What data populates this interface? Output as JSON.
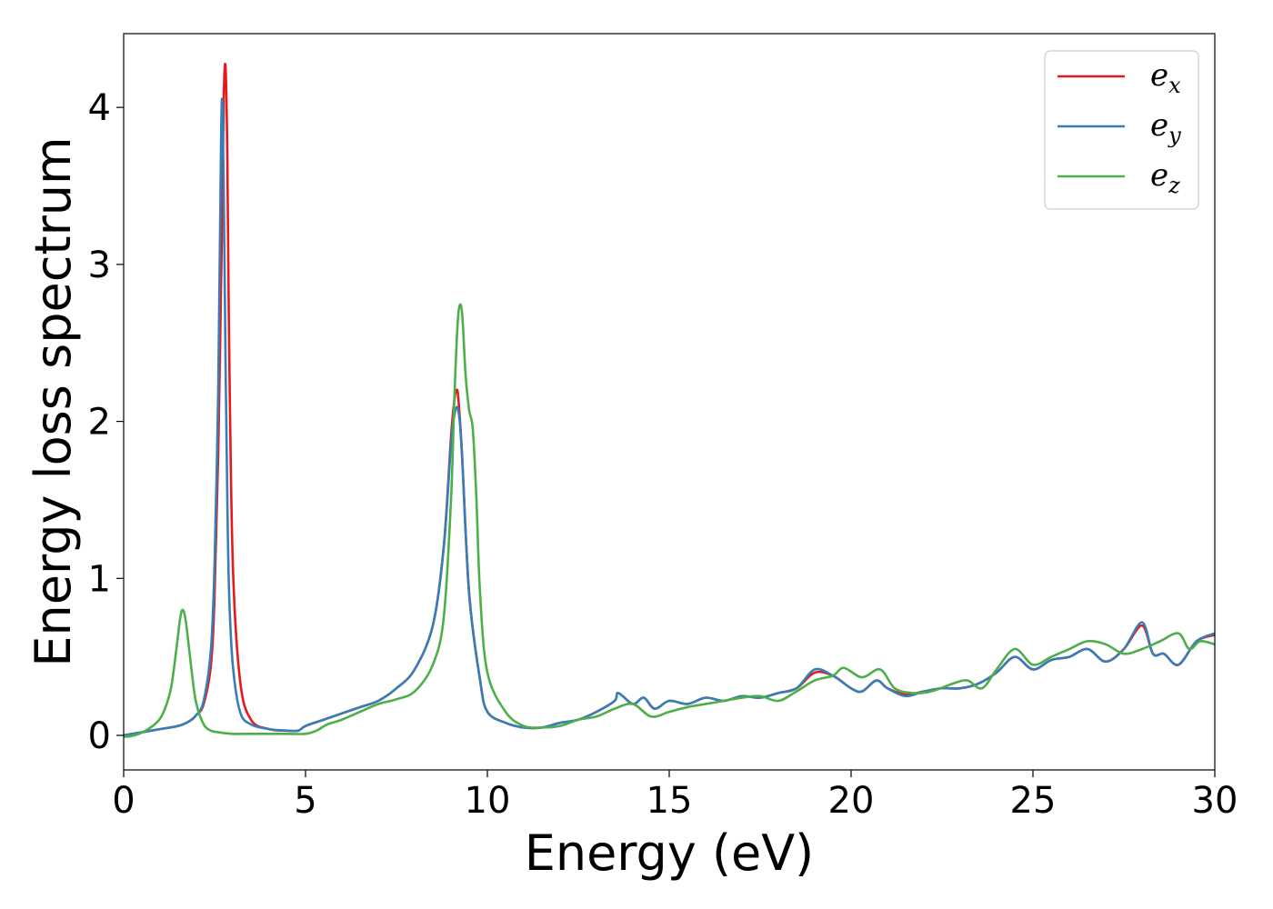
{
  "chart_data": {
    "type": "line",
    "title": "",
    "xlabel": "Energy (eV)",
    "ylabel": "Energy loss spectrum",
    "xlim": [
      0,
      30
    ],
    "ylim": [
      -0.22,
      4.47
    ],
    "xticks": [
      0,
      5,
      10,
      15,
      20,
      25,
      30
    ],
    "yticks": [
      0,
      1,
      2,
      3,
      4
    ],
    "xtick_labels": [
      "0",
      "5",
      "10",
      "15",
      "20",
      "25",
      "30"
    ],
    "ytick_labels": [
      "0",
      "1",
      "2",
      "3",
      "4"
    ],
    "grid": false,
    "legend_position": "top-right",
    "series": [
      {
        "name": "e_x",
        "legend_base": "e",
        "legend_sub": "x",
        "color": "#e41a1c",
        "x": [
          0,
          0.5,
          1.0,
          1.5,
          1.8,
          2.0,
          2.2,
          2.4,
          2.5,
          2.6,
          2.7,
          2.75,
          2.8,
          2.85,
          2.9,
          3.0,
          3.2,
          3.5,
          4.0,
          4.5,
          4.8,
          5.0,
          5.5,
          6.0,
          6.5,
          7.0,
          7.5,
          8.0,
          8.5,
          8.8,
          9.0,
          9.1,
          9.15,
          9.2,
          9.3,
          9.5,
          9.8,
          10.0,
          10.5,
          11.0,
          11.5,
          12.0,
          12.5,
          13.0,
          13.5,
          13.6,
          14.0,
          14.3,
          14.6,
          15.0,
          15.5,
          16.0,
          16.5,
          17.0,
          17.5,
          18.0,
          18.5,
          19.0,
          19.5,
          20.0,
          20.3,
          20.7,
          21.0,
          21.5,
          22.0,
          22.5,
          23.0,
          23.5,
          24.0,
          24.5,
          25.0,
          25.5,
          26.0,
          26.5,
          27.0,
          27.5,
          28.0,
          28.3,
          28.6,
          29.0,
          29.5,
          30.0
        ],
        "values": [
          0.0,
          0.02,
          0.04,
          0.06,
          0.09,
          0.13,
          0.2,
          0.45,
          0.9,
          1.8,
          3.2,
          4.05,
          4.26,
          3.7,
          2.5,
          1.1,
          0.35,
          0.1,
          0.04,
          0.03,
          0.03,
          0.06,
          0.1,
          0.14,
          0.18,
          0.22,
          0.3,
          0.42,
          0.7,
          1.2,
          1.9,
          2.15,
          2.2,
          2.15,
          1.8,
          0.9,
          0.35,
          0.15,
          0.08,
          0.05,
          0.05,
          0.08,
          0.1,
          0.15,
          0.22,
          0.27,
          0.2,
          0.24,
          0.17,
          0.22,
          0.2,
          0.24,
          0.22,
          0.25,
          0.24,
          0.27,
          0.3,
          0.4,
          0.38,
          0.3,
          0.28,
          0.35,
          0.3,
          0.26,
          0.28,
          0.3,
          0.3,
          0.33,
          0.4,
          0.5,
          0.42,
          0.48,
          0.5,
          0.55,
          0.47,
          0.55,
          0.7,
          0.52,
          0.52,
          0.45,
          0.6,
          0.64
        ]
      },
      {
        "name": "e_y",
        "legend_base": "e",
        "legend_sub": "y",
        "color": "#377eb8",
        "x": [
          0,
          0.5,
          1.0,
          1.5,
          1.8,
          2.0,
          2.2,
          2.4,
          2.5,
          2.6,
          2.65,
          2.7,
          2.75,
          2.8,
          2.85,
          2.9,
          3.0,
          3.2,
          3.5,
          4.0,
          4.5,
          4.8,
          5.0,
          5.5,
          6.0,
          6.5,
          7.0,
          7.5,
          8.0,
          8.5,
          8.8,
          9.0,
          9.1,
          9.2,
          9.3,
          9.5,
          9.8,
          10.0,
          10.5,
          11.0,
          11.5,
          12.0,
          12.5,
          13.0,
          13.5,
          13.6,
          14.0,
          14.3,
          14.6,
          15.0,
          15.5,
          16.0,
          16.5,
          17.0,
          17.5,
          18.0,
          18.5,
          19.0,
          19.5,
          20.0,
          20.3,
          20.7,
          21.0,
          21.5,
          22.0,
          22.5,
          23.0,
          23.5,
          24.0,
          24.5,
          25.0,
          25.5,
          26.0,
          26.5,
          27.0,
          27.5,
          28.0,
          28.3,
          28.6,
          29.0,
          29.5,
          30.0
        ],
        "values": [
          0.0,
          0.02,
          0.04,
          0.06,
          0.09,
          0.13,
          0.22,
          0.55,
          1.1,
          2.2,
          3.2,
          4.05,
          3.5,
          2.4,
          1.5,
          0.9,
          0.45,
          0.15,
          0.07,
          0.04,
          0.03,
          0.03,
          0.06,
          0.1,
          0.14,
          0.18,
          0.22,
          0.3,
          0.42,
          0.7,
          1.2,
          1.85,
          2.05,
          2.07,
          1.8,
          0.9,
          0.35,
          0.15,
          0.08,
          0.05,
          0.05,
          0.08,
          0.1,
          0.15,
          0.22,
          0.27,
          0.2,
          0.24,
          0.17,
          0.22,
          0.2,
          0.24,
          0.22,
          0.25,
          0.24,
          0.27,
          0.3,
          0.42,
          0.38,
          0.3,
          0.28,
          0.35,
          0.3,
          0.25,
          0.28,
          0.3,
          0.3,
          0.33,
          0.4,
          0.5,
          0.42,
          0.48,
          0.5,
          0.55,
          0.47,
          0.55,
          0.72,
          0.52,
          0.52,
          0.45,
          0.6,
          0.65
        ]
      },
      {
        "name": "e_z",
        "legend_base": "e",
        "legend_sub": "z",
        "color": "#4daf4a",
        "x": [
          0,
          0.3,
          0.6,
          0.9,
          1.1,
          1.3,
          1.45,
          1.55,
          1.62,
          1.7,
          1.8,
          1.9,
          2.0,
          2.2,
          2.4,
          2.6,
          3.0,
          3.5,
          4.0,
          4.5,
          5.0,
          5.3,
          5.6,
          6.0,
          6.5,
          7.0,
          7.5,
          8.0,
          8.5,
          8.8,
          9.0,
          9.1,
          9.2,
          9.3,
          9.4,
          9.5,
          9.6,
          9.7,
          9.8,
          10.0,
          10.5,
          11.0,
          11.5,
          12.0,
          12.5,
          13.0,
          13.5,
          14.0,
          14.5,
          15.0,
          15.5,
          16.0,
          16.5,
          17.0,
          17.5,
          18.0,
          18.5,
          19.0,
          19.5,
          19.8,
          20.3,
          20.8,
          21.2,
          21.7,
          22.2,
          22.8,
          23.2,
          23.6,
          24.0,
          24.5,
          25.0,
          25.5,
          26.0,
          26.5,
          27.0,
          27.5,
          28.0,
          28.5,
          29.0,
          29.3,
          29.6,
          30.0
        ],
        "values": [
          -0.01,
          0.0,
          0.03,
          0.08,
          0.15,
          0.3,
          0.55,
          0.74,
          0.8,
          0.74,
          0.55,
          0.35,
          0.2,
          0.07,
          0.03,
          0.02,
          0.01,
          0.01,
          0.01,
          0.01,
          0.01,
          0.03,
          0.07,
          0.1,
          0.15,
          0.2,
          0.23,
          0.28,
          0.45,
          0.75,
          1.5,
          2.2,
          2.68,
          2.7,
          2.3,
          2.07,
          1.95,
          1.5,
          0.9,
          0.4,
          0.15,
          0.06,
          0.05,
          0.06,
          0.1,
          0.12,
          0.17,
          0.2,
          0.12,
          0.15,
          0.18,
          0.2,
          0.22,
          0.24,
          0.25,
          0.22,
          0.28,
          0.35,
          0.38,
          0.43,
          0.37,
          0.42,
          0.3,
          0.27,
          0.28,
          0.33,
          0.35,
          0.3,
          0.42,
          0.55,
          0.45,
          0.5,
          0.55,
          0.6,
          0.58,
          0.52,
          0.55,
          0.6,
          0.65,
          0.55,
          0.6,
          0.58
        ]
      }
    ]
  }
}
